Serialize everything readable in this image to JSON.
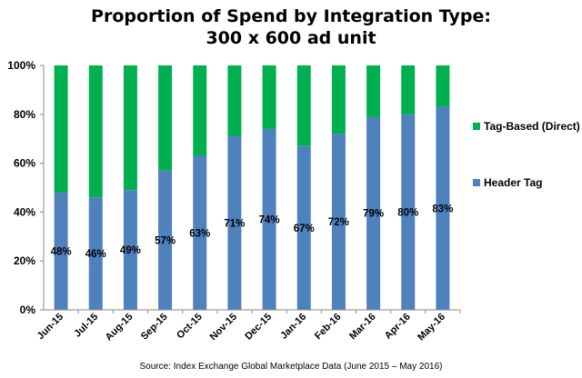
{
  "chart_data": {
    "type": "bar",
    "stacked": true,
    "title_lines": [
      "Proportion of Spend by Integration Type:",
      "300 x 600 ad unit"
    ],
    "categories": [
      "Jun-15",
      "Jul-15",
      "Aug-15",
      "Sep-15",
      "Oct-15",
      "Nov-15",
      "Dec-15",
      "Jan-16",
      "Feb-16",
      "Mar-16",
      "Apr-16",
      "May-16"
    ],
    "series": [
      {
        "name": "Header Tag",
        "color": "#4f81bd",
        "values": [
          48,
          46,
          49,
          57,
          63,
          71,
          74,
          67,
          72,
          79,
          80,
          83
        ],
        "data_labels": [
          "48%",
          "46%",
          "49%",
          "57%",
          "63%",
          "71%",
          "74%",
          "67%",
          "72%",
          "79%",
          "80%",
          "83%"
        ]
      },
      {
        "name": "Tag-Based (Direct)",
        "color": "#00b050",
        "values": [
          52,
          54,
          51,
          43,
          37,
          29,
          26,
          33,
          28,
          21,
          20,
          17
        ]
      }
    ],
    "ylim": [
      0,
      100
    ],
    "yticks": [
      "0%",
      "20%",
      "40%",
      "60%",
      "80%",
      "100%"
    ],
    "ytick_values": [
      0,
      20,
      40,
      60,
      80,
      100
    ],
    "legend_position": "right",
    "grid": false,
    "source": "Source: Index Exchange Global Marketplace Data (June 2015 – May 2016)"
  }
}
